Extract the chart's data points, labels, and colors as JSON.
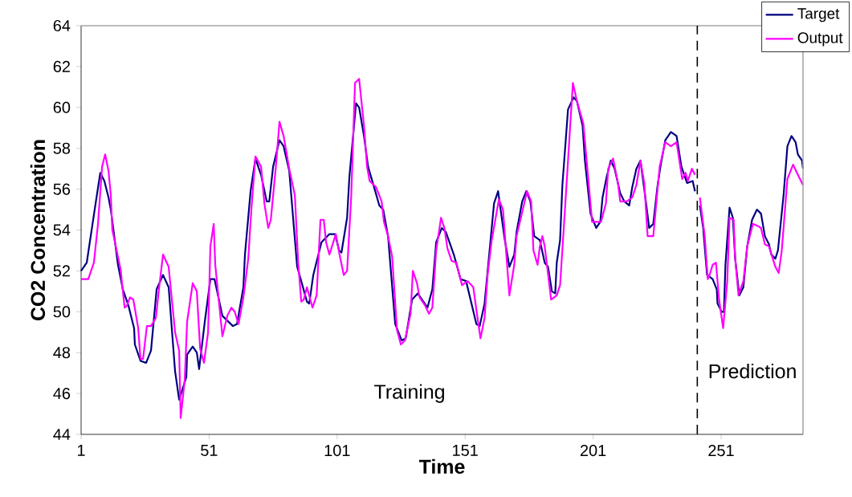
{
  "chart_data": {
    "type": "line",
    "xlabel": "Time",
    "ylabel": "CO2 Concentration",
    "xlim": [
      1,
      283
    ],
    "xticks": [
      1,
      51,
      101,
      151,
      201,
      251
    ],
    "ylim": [
      44,
      64
    ],
    "yticks": [
      44,
      46,
      48,
      50,
      52,
      54,
      56,
      58,
      60,
      62,
      64
    ],
    "legend": "top right",
    "marker": "none",
    "line_style": "solid",
    "ref_lines": [
      {
        "axis": "x",
        "value": 241.7,
        "line_style": "dashed",
        "color": "#000000"
      }
    ],
    "annotations": [
      "Training",
      "Prediction"
    ],
    "series": [
      {
        "name": "Target",
        "color": "#000080",
        "x": [
          1,
          3.2,
          6.3,
          8.5,
          10.1,
          11.7,
          12.6,
          15.4,
          17.3,
          19.5,
          21.7,
          22,
          24.2,
          26.4,
          28.3,
          30.5,
          33,
          35.2,
          37.7,
          39.3,
          42.1,
          42.4,
          44.6,
          46.2,
          47.1,
          49.3,
          51.5,
          53.1,
          56.2,
          60.3,
          61.9,
          64.4,
          65,
          67.2,
          69.1,
          71.3,
          73.5,
          74.5,
          76,
          78.5,
          80.1,
          82.3,
          85.4,
          87,
          89.2,
          90.1,
          91.7,
          94.9,
          98,
          100.2,
          101.8,
          102.7,
          104.9,
          105.8,
          108.4,
          109.6,
          111.5,
          113.1,
          115.9,
          117.5,
          119,
          120.9,
          123.7,
          126.2,
          127.8,
          130.3,
          132.5,
          136.3,
          138.2,
          139.7,
          141.9,
          143.5,
          146.6,
          149.2,
          151.4,
          155.4,
          156.7,
          158.6,
          162.3,
          163.9,
          166.4,
          168.3,
          170.2,
          171.1,
          173.3,
          174.9,
          176.5,
          178,
          180.2,
          182.1,
          183.4,
          184.9,
          186.2,
          186.8,
          188.1,
          189,
          191.2,
          193.4,
          194.7,
          196.9,
          197.8,
          200,
          202.2,
          203.8,
          204.7,
          206.3,
          207.9,
          209.4,
          211.6,
          213.2,
          215.1,
          216.3,
          217.9,
          219.5,
          221.4,
          222.9,
          224.5,
          226.1,
          227.3,
          229.2,
          231.4,
          233.6,
          235.5,
          237.7,
          239.9,
          240.8,
          241.7,
          242.7,
          244,
          245.5,
          247.7,
          249.3,
          249.6,
          251.2,
          252.1,
          252.7,
          254.3,
          255.6,
          256.5,
          258.1,
          259.7,
          261.2,
          263.1,
          265,
          266.6,
          268.1,
          269.7,
          270.6,
          272.2,
          273.2,
          275.4,
          276.9,
          278.5,
          280.1,
          281,
          282.6,
          283
        ],
        "values": [
          52.0,
          52.4,
          55.0,
          56.8,
          56.4,
          55.6,
          55.0,
          52.3,
          51.1,
          50.3,
          49.2,
          48.4,
          47.6,
          47.5,
          48.1,
          51.1,
          51.8,
          51.2,
          47.1,
          45.7,
          46.8,
          47.9,
          48.3,
          48.0,
          47.2,
          49.5,
          51.6,
          51.6,
          49.8,
          49.3,
          49.4,
          51.2,
          52.8,
          55.9,
          57.5,
          56.7,
          55.4,
          55.4,
          57.1,
          58.4,
          58.1,
          56.9,
          52.2,
          51.5,
          50.5,
          50.4,
          51.8,
          53.4,
          53.8,
          53.8,
          53.0,
          52.9,
          54.6,
          56.6,
          60.2,
          60.0,
          58.6,
          57.1,
          55.9,
          55.2,
          55.0,
          53.7,
          49.4,
          48.6,
          48.7,
          50.6,
          50.9,
          50.2,
          51.1,
          53.4,
          54.1,
          53.9,
          52.8,
          51.6,
          51.5,
          49.4,
          49.3,
          50.4,
          55.3,
          55.9,
          53.6,
          52.2,
          52.8,
          53.9,
          55.4,
          55.9,
          55.4,
          53.7,
          53.5,
          52.4,
          52.2,
          51.0,
          50.9,
          52.4,
          53.5,
          56.2,
          59.9,
          60.5,
          60.3,
          59.1,
          57.4,
          54.8,
          54.1,
          54.4,
          55.6,
          56.6,
          57.4,
          57.0,
          55.8,
          55.4,
          55.2,
          56.1,
          57.0,
          57.4,
          55.6,
          54.1,
          54.3,
          56.1,
          57.1,
          58.4,
          58.8,
          58.6,
          57.1,
          56.3,
          56.4,
          55.9,
          null,
          55.2,
          54.1,
          51.8,
          51.6,
          51.1,
          50.4,
          50.0,
          50.0,
          52.3,
          55.1,
          54.6,
          52.6,
          50.8,
          51.2,
          53.2,
          54.5,
          55.0,
          54.8,
          53.7,
          53.3,
          52.8,
          52.6,
          53.0,
          55.7,
          58.1,
          58.6,
          58.3,
          57.7,
          57.4,
          57.0
        ]
      },
      {
        "name": "Output",
        "color": "#ff00ff",
        "x": [
          1,
          3.8,
          6,
          7.6,
          9.2,
          10.4,
          11.7,
          12.6,
          13.2,
          16.4,
          18,
          18.9,
          20.1,
          21.4,
          23.3,
          24.2,
          25.2,
          26.7,
          28.3,
          30.2,
          31.4,
          33,
          35.2,
          37.7,
          39.3,
          39.9,
          41.5,
          42.4,
          44.6,
          46.2,
          47.5,
          49,
          50.6,
          51.5,
          52.8,
          53.4,
          56.2,
          58.1,
          59.7,
          61,
          62.5,
          64.4,
          66.3,
          67.5,
          69.1,
          71.3,
          72.6,
          74.1,
          75.1,
          77,
          78.5,
          80.1,
          82.3,
          84.5,
          85.8,
          87,
          88,
          89.2,
          91.4,
          93,
          94.5,
          95.8,
          96.7,
          98,
          100.5,
          102.1,
          103.6,
          104.9,
          106.5,
          108,
          109.6,
          111.5,
          112.7,
          113.7,
          116.2,
          118.4,
          119.3,
          120.9,
          122.5,
          124.4,
          125.9,
          127.5,
          129.7,
          130.6,
          132.2,
          133.2,
          135.4,
          136.9,
          138.2,
          139.7,
          141.6,
          142.9,
          144.1,
          145.7,
          147.6,
          149.8,
          152,
          154.2,
          155.4,
          157,
          158.6,
          159.8,
          161.4,
          164.2,
          165.8,
          168.3,
          170.2,
          171.1,
          175.2,
          176.8,
          177.7,
          179.3,
          180.2,
          181.2,
          182.1,
          184.6,
          186.8,
          188.1,
          190,
          193.1,
          194.7,
          197.2,
          198.4,
          200.6,
          204.1,
          206,
          206.9,
          208.8,
          210.7,
          211.6,
          214.1,
          216.3,
          217.9,
          219.5,
          221,
          222.3,
          224.5,
          227,
          229.2,
          231.4,
          233.6,
          235.8,
          237.1,
          238,
          239.6,
          240.8,
          241.7,
          242.7,
          244.6,
          245.8,
          246.5,
          247.7,
          249,
          250.2,
          251.8,
          253.4,
          254.3,
          255.9,
          256.5,
          257.8,
          259.7,
          261.2,
          263.4,
          265.3,
          266.6,
          268.1,
          269.7,
          272.2,
          273.5,
          274.7,
          276.9,
          279.1,
          281,
          283
        ],
        "values": [
          51.6,
          51.6,
          52.4,
          54.3,
          57.1,
          57.7,
          56.9,
          55.7,
          54.0,
          52.1,
          50.2,
          50.3,
          50.7,
          50.6,
          49.2,
          47.7,
          47.7,
          49.3,
          49.3,
          49.7,
          51.1,
          52.8,
          52.2,
          49.0,
          48.1,
          44.8,
          46.7,
          49.5,
          51.4,
          51.0,
          48.2,
          47.5,
          49.0,
          53.2,
          54.3,
          52.3,
          48.8,
          49.8,
          50.2,
          50.0,
          49.4,
          50.7,
          52.6,
          55.0,
          57.6,
          57.1,
          55.3,
          54.1,
          54.5,
          57.0,
          59.3,
          58.6,
          57.0,
          55.7,
          52.4,
          50.5,
          50.6,
          51.2,
          50.2,
          50.8,
          54.5,
          54.5,
          53.4,
          52.8,
          53.8,
          52.7,
          51.8,
          52.0,
          55.6,
          61.2,
          61.4,
          59.1,
          57.1,
          56.4,
          56.1,
          55.4,
          54.4,
          53.7,
          52.7,
          49.1,
          48.4,
          48.6,
          49.9,
          52.0,
          51.4,
          50.7,
          50.3,
          49.9,
          50.2,
          53.0,
          54.6,
          54.1,
          53.1,
          52.5,
          52.4,
          51.3,
          51.5,
          51.2,
          50.1,
          48.7,
          49.7,
          51.8,
          53.5,
          55.5,
          55.0,
          50.8,
          52.3,
          53.7,
          55.9,
          55.4,
          53.0,
          52.3,
          53.2,
          53.7,
          53.2,
          50.6,
          50.8,
          51.3,
          55.0,
          61.2,
          60.3,
          59.2,
          57.5,
          54.4,
          54.4,
          55.3,
          57.0,
          57.5,
          56.3,
          55.4,
          55.4,
          55.6,
          56.2,
          57.4,
          56.3,
          53.7,
          53.7,
          57.1,
          58.3,
          58.1,
          58.3,
          56.5,
          56.8,
          56.4,
          57.0,
          56.7,
          null,
          55.6,
          53.7,
          51.6,
          51.8,
          52.3,
          52.4,
          50.6,
          49.2,
          51.5,
          54.6,
          54.5,
          52.6,
          50.8,
          51.5,
          53.2,
          54.3,
          54.2,
          54.1,
          53.3,
          53.2,
          52.2,
          51.9,
          53.0,
          56.5,
          57.2,
          56.7,
          56.2
        ]
      }
    ]
  }
}
